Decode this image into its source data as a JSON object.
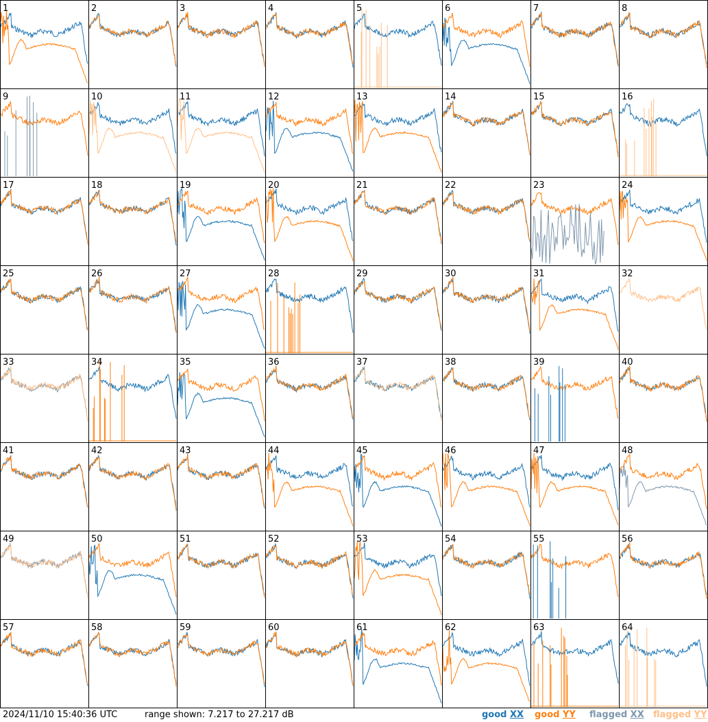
{
  "footer": {
    "timestamp": "2024/11/10 15:40:36 UTC",
    "range_text": "range shown: 7.217 to 27.217 dB"
  },
  "legend": [
    {
      "prefix": "good ",
      "suffix": "XX",
      "color": "#1f77b4"
    },
    {
      "prefix": "good ",
      "suffix": "YY",
      "color": "#ff7f0e"
    },
    {
      "prefix": "flagged ",
      "suffix": "XX",
      "color": "#7f97ad"
    },
    {
      "prefix": "flagged ",
      "suffix": "YY",
      "color": "#ffbf87"
    }
  ],
  "colors": {
    "good_xx": "#1f77b4",
    "good_yy": "#ff7f0e",
    "flagged_xx": "#7f97ad",
    "flagged_yy": "#ffbf87",
    "grid": "#000000"
  },
  "chart_data": {
    "type": "line",
    "range_db": [
      7.217,
      27.217
    ],
    "grid": "8x8",
    "panels": [
      {
        "id": "1",
        "xx": "good",
        "yy": "good",
        "shape": "yy_low"
      },
      {
        "id": "2",
        "xx": "good",
        "yy": "good",
        "shape": "normal"
      },
      {
        "id": "3",
        "xx": "good",
        "yy": "good",
        "shape": "normal"
      },
      {
        "id": "4",
        "xx": "good",
        "yy": "good",
        "shape": "normal"
      },
      {
        "id": "5",
        "xx": "good",
        "yy": "flagged",
        "shape": "yy_spikes"
      },
      {
        "id": "6",
        "xx": "good",
        "yy": "good",
        "shape": "xx_low"
      },
      {
        "id": "7",
        "xx": "good",
        "yy": "good",
        "shape": "normal"
      },
      {
        "id": "8",
        "xx": "good",
        "yy": "good",
        "shape": "normal"
      },
      {
        "id": "9",
        "xx": "flagged",
        "yy": "good",
        "shape": "xx_spikes"
      },
      {
        "id": "10",
        "xx": "good",
        "yy": "flagged",
        "shape": "yy_low"
      },
      {
        "id": "11",
        "xx": "good",
        "yy": "flagged",
        "shape": "yy_low"
      },
      {
        "id": "12",
        "xx": "good",
        "yy": "good",
        "shape": "xx_low"
      },
      {
        "id": "13",
        "xx": "good",
        "yy": "good",
        "shape": "yy_low"
      },
      {
        "id": "14",
        "xx": "good",
        "yy": "good",
        "shape": "normal"
      },
      {
        "id": "15",
        "xx": "good",
        "yy": "good",
        "shape": "normal"
      },
      {
        "id": "16",
        "xx": "good",
        "yy": "flagged",
        "shape": "yy_spikes"
      },
      {
        "id": "17",
        "xx": "good",
        "yy": "good",
        "shape": "normal"
      },
      {
        "id": "18",
        "xx": "good",
        "yy": "good",
        "shape": "normal"
      },
      {
        "id": "19",
        "xx": "good",
        "yy": "good",
        "shape": "xx_low"
      },
      {
        "id": "20",
        "xx": "good",
        "yy": "good",
        "shape": "yy_low"
      },
      {
        "id": "21",
        "xx": "good",
        "yy": "good",
        "shape": "normal"
      },
      {
        "id": "22",
        "xx": "good",
        "yy": "good",
        "shape": "normal"
      },
      {
        "id": "23",
        "xx": "flagged",
        "yy": "good",
        "shape": "xx_noise"
      },
      {
        "id": "24",
        "xx": "good",
        "yy": "good",
        "shape": "yy_low"
      },
      {
        "id": "25",
        "xx": "good",
        "yy": "good",
        "shape": "normal"
      },
      {
        "id": "26",
        "xx": "good",
        "yy": "good",
        "shape": "normal"
      },
      {
        "id": "27",
        "xx": "good",
        "yy": "good",
        "shape": "xx_low"
      },
      {
        "id": "28",
        "xx": "good",
        "yy": "good",
        "shape": "yy_spikes"
      },
      {
        "id": "29",
        "xx": "good",
        "yy": "good",
        "shape": "normal"
      },
      {
        "id": "30",
        "xx": "good",
        "yy": "good",
        "shape": "normal"
      },
      {
        "id": "31",
        "xx": "good",
        "yy": "good",
        "shape": "yy_low"
      },
      {
        "id": "32",
        "xx": "flagged",
        "yy": "flagged",
        "shape": "yy_only"
      },
      {
        "id": "33",
        "xx": "flagged",
        "yy": "flagged",
        "shape": "normal"
      },
      {
        "id": "34",
        "xx": "good",
        "yy": "good",
        "shape": "yy_spikes"
      },
      {
        "id": "35",
        "xx": "good",
        "yy": "good",
        "shape": "xx_low"
      },
      {
        "id": "36",
        "xx": "good",
        "yy": "good",
        "shape": "normal"
      },
      {
        "id": "37",
        "xx": "good",
        "yy": "flagged",
        "shape": "normal"
      },
      {
        "id": "38",
        "xx": "good",
        "yy": "good",
        "shape": "normal"
      },
      {
        "id": "39",
        "xx": "good",
        "yy": "good",
        "shape": "xx_spikes"
      },
      {
        "id": "40",
        "xx": "good",
        "yy": "good",
        "shape": "normal"
      },
      {
        "id": "41",
        "xx": "good",
        "yy": "good",
        "shape": "normal"
      },
      {
        "id": "42",
        "xx": "good",
        "yy": "good",
        "shape": "normal"
      },
      {
        "id": "43",
        "xx": "good",
        "yy": "good",
        "shape": "normal"
      },
      {
        "id": "44",
        "xx": "good",
        "yy": "good",
        "shape": "yy_low"
      },
      {
        "id": "45",
        "xx": "good",
        "yy": "good",
        "shape": "xx_low"
      },
      {
        "id": "46",
        "xx": "good",
        "yy": "good",
        "shape": "yy_low"
      },
      {
        "id": "47",
        "xx": "good",
        "yy": "good",
        "shape": "yy_low"
      },
      {
        "id": "48",
        "xx": "flagged",
        "yy": "good",
        "shape": "xx_low"
      },
      {
        "id": "49",
        "xx": "flagged",
        "yy": "flagged",
        "shape": "normal"
      },
      {
        "id": "50",
        "xx": "good",
        "yy": "good",
        "shape": "xx_low"
      },
      {
        "id": "51",
        "xx": "good",
        "yy": "good",
        "shape": "normal"
      },
      {
        "id": "52",
        "xx": "good",
        "yy": "good",
        "shape": "normal"
      },
      {
        "id": "53",
        "xx": "good",
        "yy": "good",
        "shape": "yy_low"
      },
      {
        "id": "54",
        "xx": "good",
        "yy": "good",
        "shape": "normal"
      },
      {
        "id": "55",
        "xx": "good",
        "yy": "good",
        "shape": "xx_spikes"
      },
      {
        "id": "56",
        "xx": "good",
        "yy": "good",
        "shape": "normal"
      },
      {
        "id": "57",
        "xx": "good",
        "yy": "good",
        "shape": "normal"
      },
      {
        "id": "58",
        "xx": "good",
        "yy": "good",
        "shape": "normal"
      },
      {
        "id": "59",
        "xx": "good",
        "yy": "good",
        "shape": "normal"
      },
      {
        "id": "60",
        "xx": "good",
        "yy": "good",
        "shape": "normal"
      },
      {
        "id": "61",
        "xx": "good",
        "yy": "good",
        "shape": "xx_low"
      },
      {
        "id": "62",
        "xx": "good",
        "yy": "good",
        "shape": "yy_low"
      },
      {
        "id": "63",
        "xx": "good",
        "yy": "good",
        "shape": "yy_spikes"
      },
      {
        "id": "64",
        "xx": "good",
        "yy": "flagged",
        "shape": "yy_spikes"
      }
    ]
  }
}
